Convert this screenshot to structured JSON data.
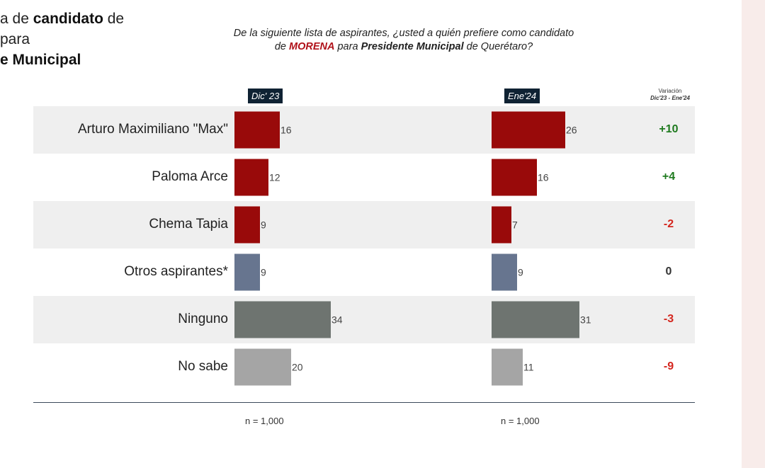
{
  "side_title": {
    "line1_prefix": "a de ",
    "line1_bold": "candidato",
    "line1_suffix": " de",
    "line2": " para",
    "line3": "e Municipal"
  },
  "question": {
    "part1": "De la siguiente lista de aspirantes, ¿usted a quién prefiere como candidato de ",
    "party": "MORENA",
    "part2": " para ",
    "office": "Presidente Municipal",
    "part3": " de Querétaro?"
  },
  "variation_header": {
    "label": "Variación",
    "sub": "Dic'23 - Ene'24"
  },
  "sample": {
    "period1": "n = 1,000",
    "period2": "n = 1,000"
  },
  "colors": {
    "candidate": "#990a0a",
    "otros": "#67758f",
    "ninguno": "#6e7470",
    "nosabe": "#a5a5a5",
    "positive": "#1e7a1e",
    "negative": "#d4261e",
    "neutral": "#333333",
    "stripe": "#efefef"
  },
  "chart_data": {
    "type": "bar",
    "orientation": "horizontal",
    "title": "De la siguiente lista de aspirantes, ¿usted a quién prefiere como candidato de MORENA para Presidente Municipal de Querétaro?",
    "categories": [
      "Arturo Maximiliano \"Max\"",
      "Paloma Arce",
      "Chema Tapia",
      "Otros aspirantes*",
      "Ninguno",
      "No sabe"
    ],
    "series": [
      {
        "name": "Dic' 23",
        "values": [
          16,
          12,
          9,
          9,
          34,
          20
        ]
      },
      {
        "name": "Ene'24",
        "values": [
          26,
          16,
          7,
          9,
          31,
          11
        ]
      }
    ],
    "variation": [
      "+10",
      "+4",
      "-2",
      "0",
      "-3",
      "-9"
    ],
    "bar_color_keys": [
      "candidate",
      "candidate",
      "candidate",
      "otros",
      "ninguno",
      "nosabe"
    ],
    "variation_color_keys": [
      "positive",
      "positive",
      "negative",
      "neutral",
      "negative",
      "negative"
    ]
  }
}
